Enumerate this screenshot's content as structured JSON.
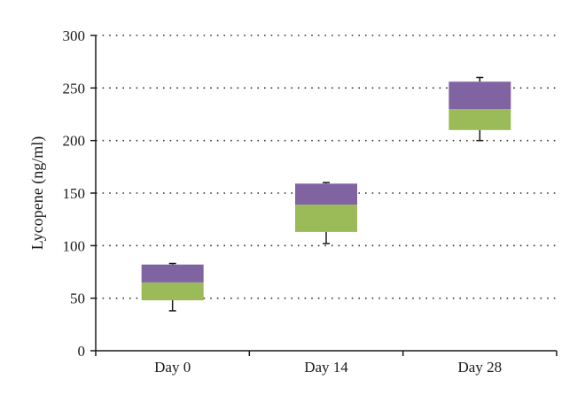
{
  "chart_data": {
    "type": "box",
    "ylabel": "Lycopene (ng/ml)",
    "xlabel": "",
    "ylim": [
      0,
      300
    ],
    "yticks": [
      0,
      50,
      100,
      150,
      200,
      250,
      300
    ],
    "grid": "horizontal dotted",
    "categories": [
      "Day 0",
      "Day 14",
      "Day 28"
    ],
    "boxes": [
      {
        "category": "Day 0",
        "min": 38,
        "q1": 48,
        "median": 65,
        "q3": 82,
        "max": 83
      },
      {
        "category": "Day 14",
        "min": 102,
        "q1": 113,
        "median": 139,
        "q3": 159,
        "max": 160
      },
      {
        "category": "Day 28",
        "min": 200,
        "q1": 210,
        "median": 230,
        "q3": 256,
        "max": 260
      }
    ],
    "colors": {
      "lower_box": "#9bbb59",
      "upper_box": "#8064a2"
    }
  }
}
